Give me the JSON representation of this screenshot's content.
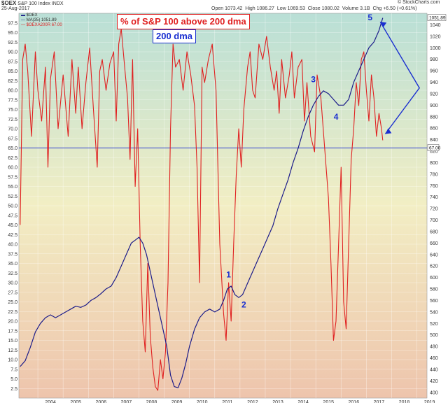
{
  "header": {
    "symbol": "$OEX",
    "name": "S&P 100 Index",
    "exchange": "INDX",
    "date": "25-Aug-2017",
    "open": "Open 1073.42",
    "high": "High 1086.27",
    "low": "Low 1069.53",
    "close": "Close 1080.02",
    "volume": "Volume 3.1B",
    "chg": "Chg +6.50 (+0.61%)",
    "watermark": "© StockCharts.com"
  },
  "legend": {
    "item1": "$OEX",
    "item2": "MA(35) 1051.89",
    "item3": "$OEXA200R 67.00"
  },
  "annotations": {
    "title_box": "% of S&P 100 above 200 dma",
    "ma_box": "200 dma",
    "wave_labels": [
      "1",
      "2",
      "3",
      "4",
      "5"
    ]
  },
  "colors": {
    "breadth_line": "#e02020",
    "ma_line": "#1c1c8a",
    "horizontal_line": "#2a3ad0",
    "arrow": "#1a2fd0",
    "bg_top": "#b9dfd6",
    "bg_mid": "#f2eec4",
    "bg_bottom": "#eec4ac"
  },
  "chart_data": {
    "type": "line",
    "x_ticks": [
      "2004",
      "2005",
      "2006",
      "2007",
      "2008",
      "2009",
      "2010",
      "2011",
      "2012",
      "2013",
      "2014",
      "2015",
      "2016",
      "2017",
      "2018",
      "2019"
    ],
    "left_axis": {
      "ylim": [
        0,
        100
      ],
      "ticks": [
        2.5,
        5.0,
        7.5,
        10.0,
        12.5,
        15.0,
        17.5,
        20.0,
        22.5,
        25.0,
        27.5,
        30.0,
        32.5,
        35.0,
        37.5,
        40.0,
        42.5,
        45.0,
        47.5,
        50.0,
        52.5,
        55.0,
        57.5,
        60.0,
        62.5,
        65.0,
        67.5,
        70.0,
        72.5,
        75.0,
        77.5,
        80.0,
        82.5,
        85.0,
        87.5,
        90.0,
        92.5,
        95.0,
        97.5
      ]
    },
    "right_axis": {
      "ylim": [
        390,
        1060
      ],
      "ticks": [
        400,
        420,
        440,
        460,
        480,
        500,
        520,
        540,
        560,
        580,
        600,
        620,
        640,
        660,
        680,
        700,
        720,
        740,
        760,
        780,
        800,
        820,
        840,
        860,
        880,
        900,
        920,
        940,
        960,
        980,
        1000,
        1020,
        1040
      ],
      "last_value_tag": "1051.89",
      "breadth_value_tag": "67.00"
    },
    "horizontal_line_value": 65,
    "series": [
      {
        "name": "$OEXA200R",
        "axis": "left",
        "x": [
          2003.3,
          2003.4,
          2003.5,
          2003.6,
          2003.75,
          2003.9,
          2004.0,
          2004.15,
          2004.3,
          2004.4,
          2004.5,
          2004.65,
          2004.8,
          2005.0,
          2005.2,
          2005.35,
          2005.5,
          2005.6,
          2005.75,
          2005.9,
          2006.05,
          2006.2,
          2006.35,
          2006.45,
          2006.55,
          2006.7,
          2006.85,
          2007.0,
          2007.1,
          2007.2,
          2007.3,
          2007.45,
          2007.55,
          2007.65,
          2007.75,
          2007.85,
          2007.95,
          2008.05,
          2008.15,
          2008.25,
          2008.35,
          2008.45,
          2008.55,
          2008.65,
          2008.75,
          2008.85,
          2008.95,
          2009.05,
          2009.15,
          2009.25,
          2009.35,
          2009.45,
          2009.6,
          2009.75,
          2009.9,
          2010.05,
          2010.2,
          2010.3,
          2010.4,
          2010.5,
          2010.6,
          2010.75,
          2010.9,
          2011.05,
          2011.2,
          2011.35,
          2011.45,
          2011.55,
          2011.65,
          2011.75,
          2011.85,
          2011.95,
          2012.05,
          2012.15,
          2012.3,
          2012.4,
          2012.5,
          2012.6,
          2012.75,
          2012.9,
          2013.05,
          2013.2,
          2013.35,
          2013.45,
          2013.55,
          2013.65,
          2013.8,
          2013.95,
          2014.05,
          2014.15,
          2014.3,
          2014.45,
          2014.55,
          2014.65,
          2014.8,
          2014.95,
          2015.05,
          2015.2,
          2015.35,
          2015.5,
          2015.6,
          2015.7,
          2015.8,
          2015.9,
          2016.0,
          2016.1,
          2016.2,
          2016.3,
          2016.4,
          2016.5,
          2016.6,
          2016.7,
          2016.8,
          2016.9,
          2017.0,
          2017.1,
          2017.2,
          2017.3,
          2017.4,
          2017.5,
          2017.6,
          2017.65
        ],
        "values": [
          45,
          88,
          92,
          85,
          68,
          90,
          80,
          72,
          86,
          60,
          83,
          90,
          70,
          84,
          68,
          88,
          74,
          86,
          70,
          82,
          91,
          75,
          60,
          85,
          88,
          80,
          87,
          90,
          72,
          92,
          96,
          85,
          78,
          62,
          88,
          55,
          70,
          40,
          20,
          12,
          35,
          16,
          8,
          3,
          2,
          10,
          5,
          12,
          30,
          70,
          92,
          86,
          88,
          80,
          90,
          84,
          76,
          60,
          30,
          86,
          82,
          88,
          92,
          80,
          40,
          22,
          15,
          30,
          20,
          40,
          58,
          70,
          60,
          75,
          86,
          90,
          80,
          78,
          92,
          88,
          94,
          86,
          80,
          85,
          74,
          88,
          78,
          84,
          90,
          78,
          86,
          88,
          72,
          82,
          68,
          64,
          84,
          78,
          65,
          52,
          35,
          15,
          20,
          40,
          60,
          25,
          18,
          40,
          62,
          70,
          82,
          76,
          88,
          90,
          80,
          72,
          84,
          78,
          68,
          74,
          70,
          67
        ]
      },
      {
        "name": "MA(35)",
        "axis": "right",
        "x": [
          2003.3,
          2003.5,
          2003.7,
          2003.9,
          2004.1,
          2004.3,
          2004.5,
          2004.7,
          2004.9,
          2005.1,
          2005.3,
          2005.5,
          2005.7,
          2005.9,
          2006.1,
          2006.3,
          2006.5,
          2006.7,
          2006.9,
          2007.1,
          2007.3,
          2007.5,
          2007.7,
          2007.85,
          2008.0,
          2008.15,
          2008.3,
          2008.5,
          2008.7,
          2008.9,
          2009.1,
          2009.25,
          2009.4,
          2009.55,
          2009.7,
          2009.85,
          2010.0,
          2010.2,
          2010.4,
          2010.6,
          2010.8,
          2011.0,
          2011.2,
          2011.35,
          2011.5,
          2011.65,
          2011.8,
          2011.95,
          2012.1,
          2012.3,
          2012.5,
          2012.7,
          2012.9,
          2013.1,
          2013.3,
          2013.5,
          2013.7,
          2013.9,
          2014.1,
          2014.3,
          2014.5,
          2014.7,
          2014.9,
          2015.1,
          2015.3,
          2015.5,
          2015.7,
          2015.9,
          2016.1,
          2016.3,
          2016.5,
          2016.7,
          2016.9,
          2017.1,
          2017.3,
          2017.5,
          2017.65
        ],
        "values": [
          445,
          455,
          478,
          505,
          520,
          530,
          535,
          530,
          535,
          540,
          545,
          550,
          548,
          552,
          560,
          565,
          572,
          580,
          585,
          600,
          620,
          640,
          660,
          665,
          670,
          660,
          640,
          600,
          560,
          520,
          480,
          430,
          410,
          408,
          425,
          450,
          480,
          510,
          530,
          540,
          545,
          540,
          545,
          560,
          580,
          585,
          570,
          565,
          570,
          590,
          610,
          630,
          650,
          670,
          690,
          720,
          745,
          770,
          800,
          825,
          855,
          880,
          900,
          915,
          925,
          920,
          910,
          900,
          900,
          910,
          940,
          960,
          980,
          1000,
          1010,
          1030,
          1052
        ]
      }
    ]
  }
}
